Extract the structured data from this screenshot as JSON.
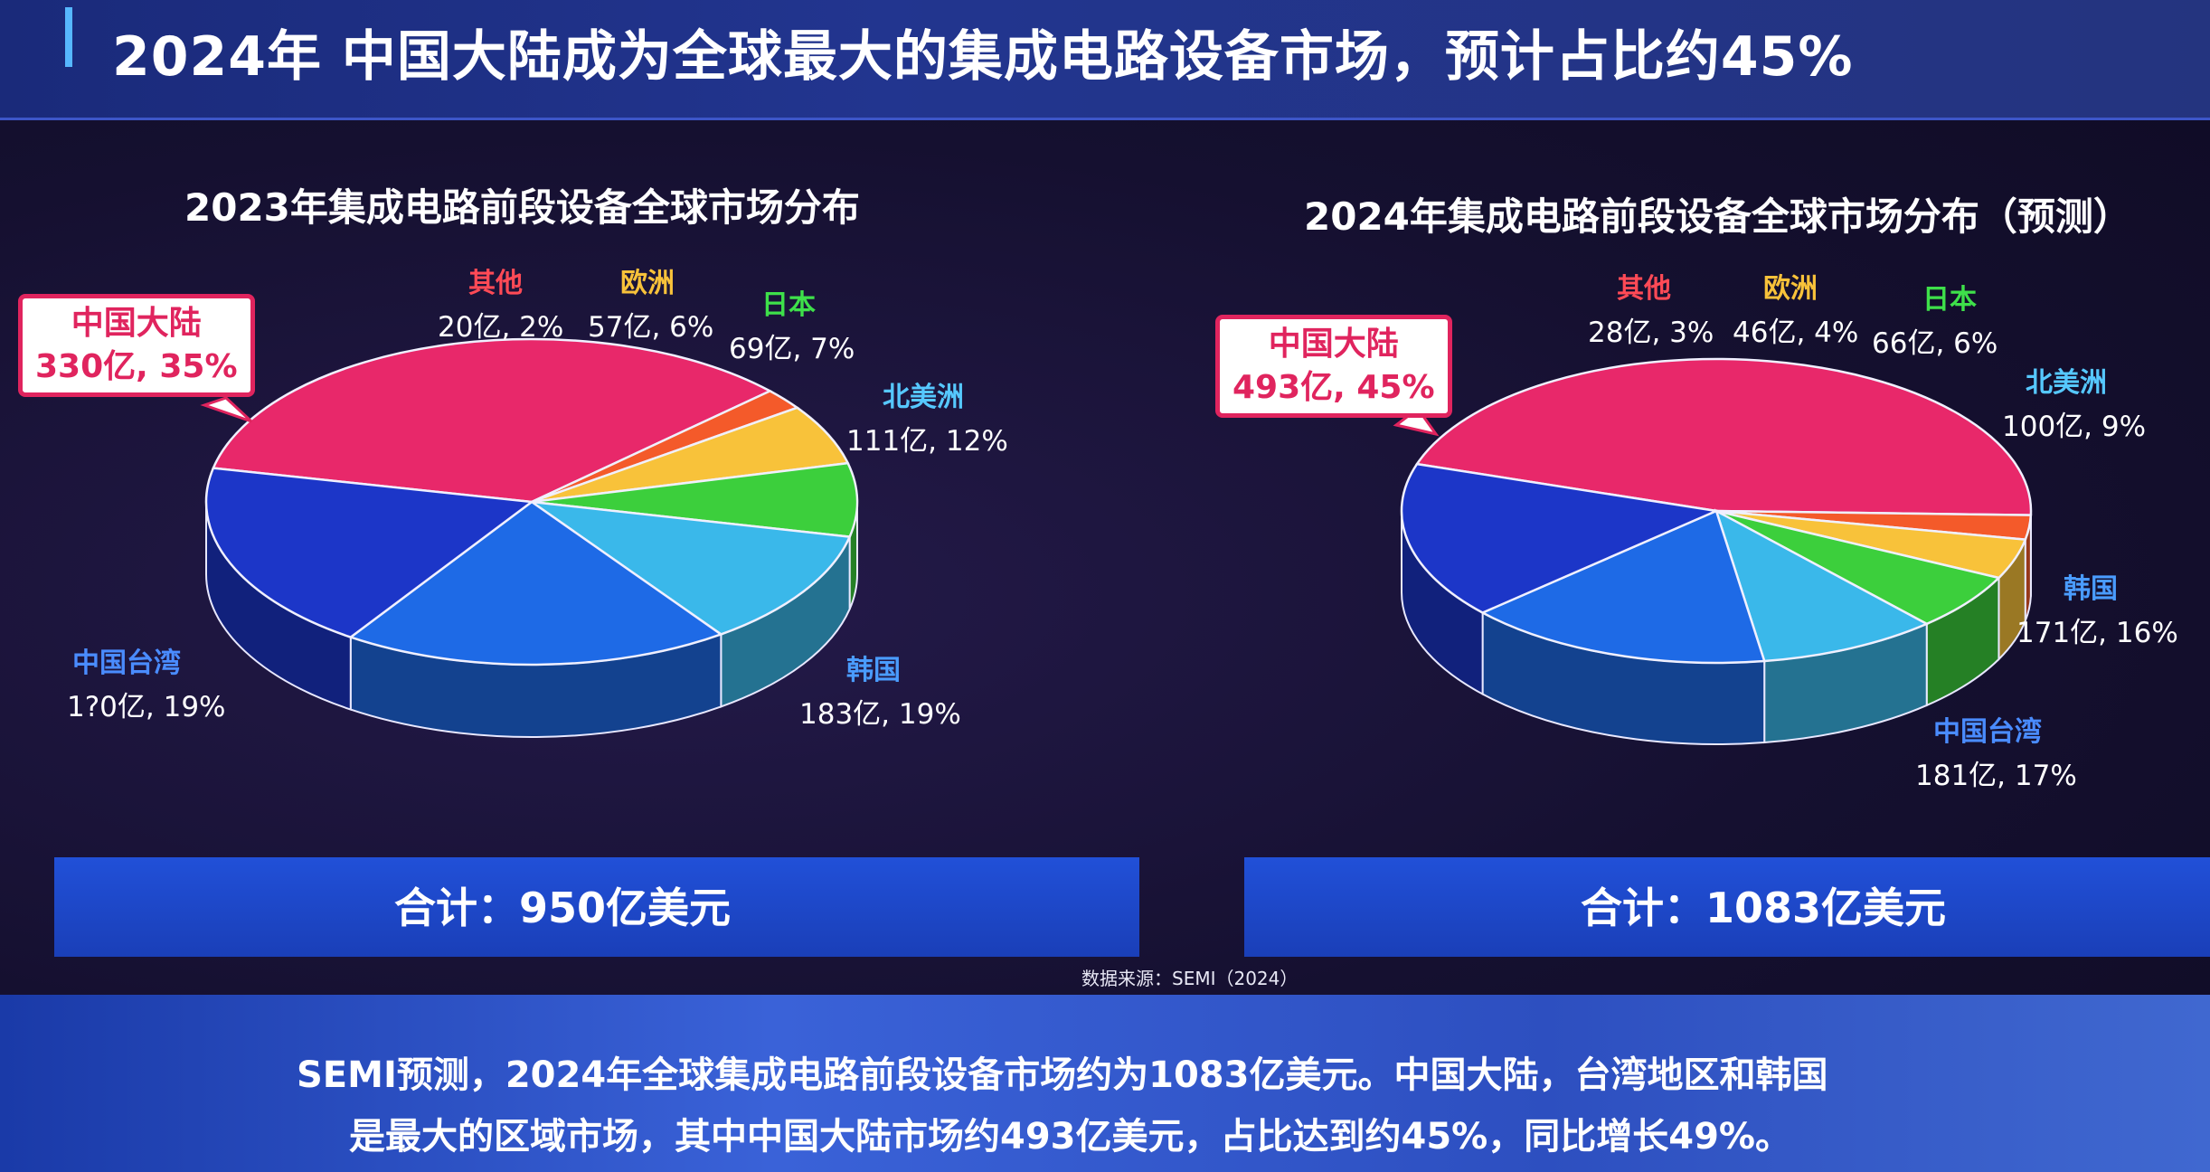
{
  "header": {
    "title": "2024年 中国大陆成为全球最大的集成电路设备市场，预计占比约45%"
  },
  "chart_data": [
    {
      "type": "pie",
      "title": "2023年集成电路前段设备全球市场分布",
      "unit": "亿",
      "slices": [
        {
          "name": "中国大陆",
          "value": 330,
          "percent": 35,
          "label": "330亿, 35%",
          "color": "#e8286a"
        },
        {
          "name": "其他",
          "value": 20,
          "percent": 2,
          "label": "20亿, 2%",
          "color": "#f45a2a"
        },
        {
          "name": "欧洲",
          "value": 57,
          "percent": 6,
          "label": "57亿, 6%",
          "color": "#f8c23a"
        },
        {
          "name": "日本",
          "value": 69,
          "percent": 7,
          "label": "69亿, 7%",
          "color": "#3ccf3c"
        },
        {
          "name": "北美洲",
          "value": 111,
          "percent": 12,
          "label": "111亿, 12%",
          "color": "#3ab8ea"
        },
        {
          "name": "韩国",
          "value": 183,
          "percent": 19,
          "label": "183亿, 19%",
          "color": "#1e6ae6"
        },
        {
          "name": "中国台湾",
          "value": 180,
          "percent": 19,
          "label": "1?0亿, 19%",
          "color": "#1c36c8"
        }
      ],
      "total": "合计：950亿美元"
    },
    {
      "type": "pie",
      "title": "2024年集成电路前段设备全球市场分布（预测）",
      "unit": "亿",
      "slices": [
        {
          "name": "中国大陆",
          "value": 493,
          "percent": 45,
          "label": "493亿, 45%",
          "color": "#e8286a"
        },
        {
          "name": "其他",
          "value": 28,
          "percent": 3,
          "label": "28亿, 3%",
          "color": "#f45a2a"
        },
        {
          "name": "欧洲",
          "value": 46,
          "percent": 4,
          "label": "46亿, 4%",
          "color": "#f8c23a"
        },
        {
          "name": "日本",
          "value": 66,
          "percent": 6,
          "label": "66亿, 6%",
          "color": "#3ccf3c"
        },
        {
          "name": "北美洲",
          "value": 100,
          "percent": 9,
          "label": "100亿, 9%",
          "color": "#3ab8ea"
        },
        {
          "name": "韩国",
          "value": 171,
          "percent": 16,
          "label": "171亿, 16%",
          "color": "#1e6ae6"
        },
        {
          "name": "中国台湾",
          "value": 181,
          "percent": 17,
          "label": "181亿, 17%",
          "color": "#1c36c8"
        }
      ],
      "total": "合计：1083亿美元"
    }
  ],
  "source": "数据来源：SEMI（2024）",
  "summary": {
    "line1": "SEMI预测，2024年全球集成电路前段设备市场约为1083亿美元。中国大陆，台湾地区和韩国",
    "line2": "是最大的区域市场，其中中国大陆市场约493亿美元，占比达到约45%，同比增长49%。"
  }
}
